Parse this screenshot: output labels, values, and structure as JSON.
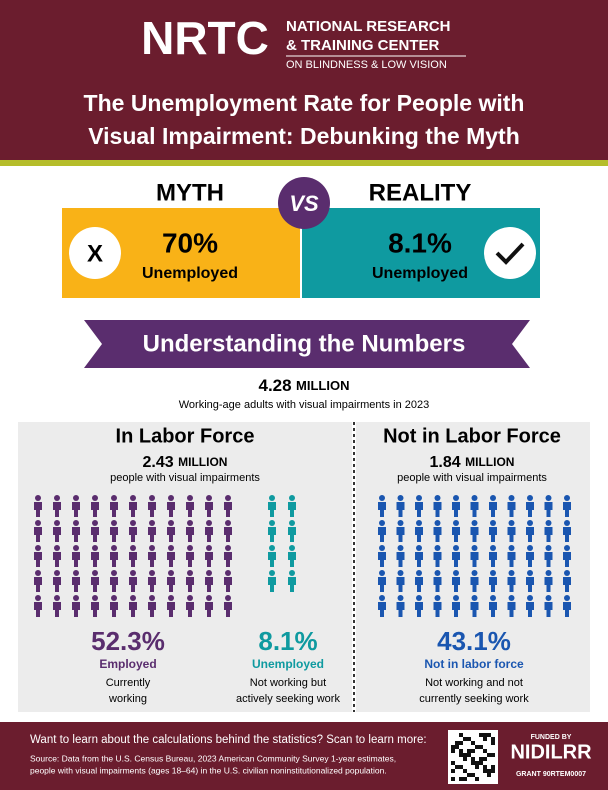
{
  "header": {
    "logo": "NRTC",
    "org_lines": [
      "NATIONAL RESEARCH",
      "& TRAINING CENTER",
      "ON BLINDNESS & LOW VISION"
    ],
    "title_lines": [
      "The Unemployment Rate for People with",
      "Visual Impairment: Debunking the Myth"
    ]
  },
  "comparison": {
    "myth": {
      "label": "MYTH",
      "mark": "X",
      "value": "70%",
      "caption": "Unemployed"
    },
    "vs": "VS",
    "reality": {
      "label": "REALITY",
      "value": "8.1%",
      "caption": "Unemployed"
    }
  },
  "banner": "Understanding the Numbers",
  "total": {
    "value": "4.28",
    "unit": "MILLION",
    "caption": "Working-age adults with visual impairments in 2023"
  },
  "labor_force": {
    "title": "In Labor Force",
    "value": "2.43",
    "unit": "MILLION",
    "caption": "people with visual impairments",
    "employed": {
      "value": "52.3%",
      "label": "Employed",
      "desc": [
        "Currently",
        "working"
      ]
    },
    "unemployed": {
      "value": "8.1%",
      "label": "Unemployed",
      "desc": [
        "Not working but",
        "actively seeking work"
      ]
    }
  },
  "not_in_labor_force": {
    "title": "Not in Labor Force",
    "value": "1.84",
    "unit": "MILLION",
    "caption": "people with visual impairments",
    "stat": {
      "value": "43.1%",
      "label": "Not in labor force",
      "desc": [
        "Not working and not",
        "currently seeking work"
      ]
    }
  },
  "footer": {
    "prompt": "Want to learn about the calculations behind the statistics? Scan to learn more:",
    "source_lines": [
      "Source: Data from the U.S. Census Bureau, 2023 American Community Survey 1-year estimates,",
      "people with visual impairments (ages 18–64) in the U.S. civilian noninstitutionalized population."
    ],
    "funded_by": "FUNDED BY",
    "funder": "NIDILRR",
    "grant": "GRANT 90RTEM0007"
  }
}
